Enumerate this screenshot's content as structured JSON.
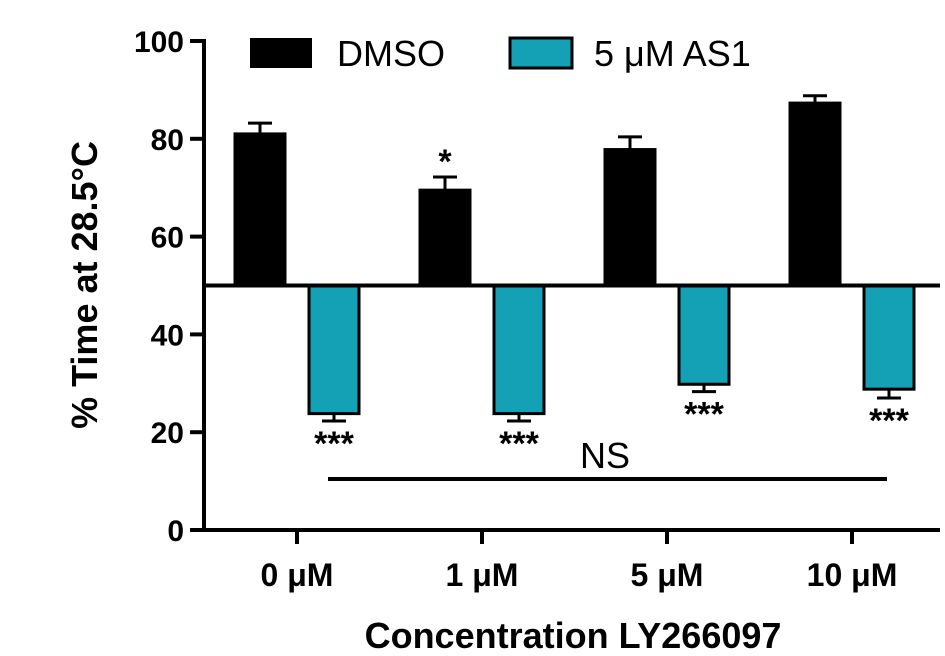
{
  "chart_data": {
    "type": "bar",
    "baseline": 50,
    "categories": [
      "0 μM",
      "1 μM",
      "5 μM",
      "10 μM"
    ],
    "series": [
      {
        "name": "DMSO",
        "color": "#000000",
        "values": [
          81,
          69.5,
          77.8,
          87.3
        ],
        "errors": [
          2.2,
          2.7,
          2.6,
          1.5
        ],
        "significance": [
          "",
          "*",
          "",
          ""
        ]
      },
      {
        "name": "5 μM AS1",
        "color": "#14a0b5",
        "values": [
          23.8,
          23.8,
          29.8,
          28.8
        ],
        "errors": [
          1.5,
          1.5,
          1.5,
          1.8
        ],
        "significance": [
          "***",
          "***",
          "***",
          "***"
        ]
      }
    ],
    "xlabel": "Concentration LY266097",
    "ylabel": "% Time at 28.5°C",
    "ylim": [
      0,
      100
    ],
    "yticks": [
      "0",
      "20",
      "40",
      "60",
      "80",
      "100"
    ],
    "ns_label": "NS"
  }
}
